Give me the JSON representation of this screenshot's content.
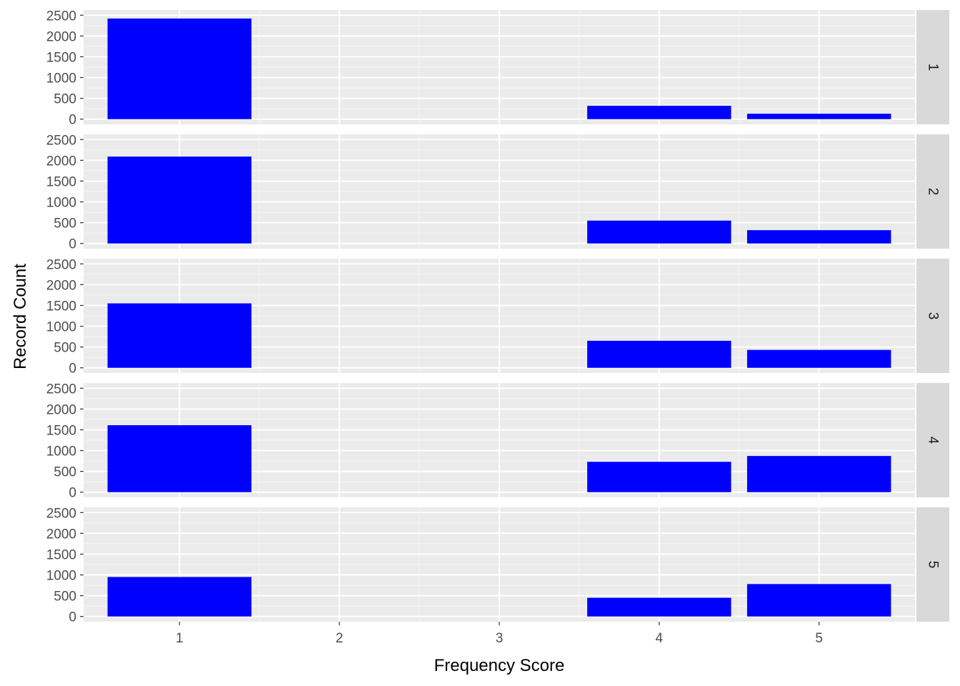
{
  "colors": {
    "bar": "#0000ff",
    "panel_background": "#ebebeb",
    "grid_major": "#ffffff",
    "grid_minor": "#f5f5f5",
    "strip_background": "#d9d9d9",
    "tick_text": "#4d4d4d"
  },
  "chart_data": {
    "type": "bar",
    "title": "",
    "xlabel": "Frequency Score",
    "ylabel": "Record Count",
    "categories": [
      "1",
      "2",
      "3",
      "4",
      "5"
    ],
    "ylim": [
      0,
      2500
    ],
    "yticks": [
      0,
      500,
      1000,
      1500,
      2000,
      2500
    ],
    "grid": true,
    "facet": "rows",
    "series": [
      {
        "name": "1",
        "values": [
          2420,
          0,
          0,
          320,
          130
        ]
      },
      {
        "name": "2",
        "values": [
          2090,
          0,
          0,
          550,
          320
        ]
      },
      {
        "name": "3",
        "values": [
          1550,
          0,
          0,
          650,
          430
        ]
      },
      {
        "name": "4",
        "values": [
          1610,
          0,
          0,
          730,
          870
        ]
      },
      {
        "name": "5",
        "values": [
          950,
          0,
          0,
          450,
          780
        ]
      }
    ]
  }
}
